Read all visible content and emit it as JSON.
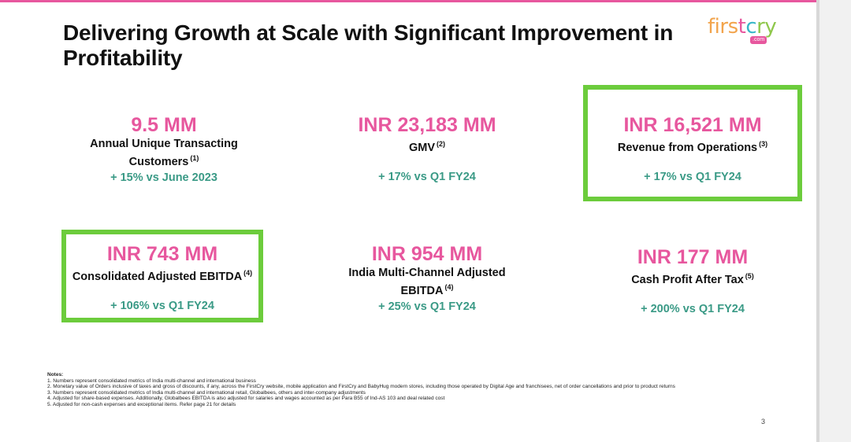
{
  "slide": {
    "title": "Delivering Growth at Scale with Significant Improvement in Profitability",
    "page_number": "3"
  },
  "logo": {
    "parts": [
      "firs",
      "t",
      "c",
      "ry"
    ],
    "badge": ".com"
  },
  "metrics": [
    {
      "value": "9.5 MM",
      "label": "Annual Unique Transacting Customers",
      "note": "(1)",
      "growth": "+ 15% vs June 2023"
    },
    {
      "value": "INR 23,183 MM",
      "label": "GMV",
      "note": "(2)",
      "growth": "+ 17% vs Q1 FY24"
    },
    {
      "value": "INR 16,521 MM",
      "label": "Revenue from Operations",
      "note": "(3)",
      "growth": "+ 17% vs Q1 FY24"
    },
    {
      "value": "INR 743 MM",
      "label": "Consolidated Adjusted EBITDA",
      "note": "(4)",
      "growth": "+ 106% vs Q1 FY24"
    },
    {
      "value": "INR 954 MM",
      "label": "India Multi-Channel Adjusted EBITDA",
      "note": "(4)",
      "growth": "+ 25% vs Q1 FY24"
    },
    {
      "value": "INR 177 MM",
      "label": "Cash Profit After Tax",
      "note": "(5)",
      "growth": "+ 200% vs Q1 FY24"
    }
  ],
  "notes": {
    "heading": "Notes:",
    "items": [
      "1.  Numbers represent consolidated metrics of India multi-channel and international business",
      "2.  Monetary value of Orders inclusive of taxes and gross of discounts, if any, across the FirstCry website, mobile application and FirstCry and BabyHug modern stores, including those operated by Digital Age and franchisees, net of order cancellations and prior to product returns",
      "3.  Numbers represent consolidated metrics of India multi-channel and international retail, Globalbees, others and inter-company adjustments",
      "4.  Adjusted for share-based expenses. Additionally, Globalbees EBITDA is also adjusted for salaries and wages accounted as per Para B55 of Ind-AS 103 and deal related cost",
      "5.  Adjusted for non-cash expenses and exceptional items. Refer page 21 for details"
    ]
  },
  "colors": {
    "accent_pink": "#e7579e",
    "growth_teal": "#3a9a86",
    "highlight_green": "#6ccc3c"
  }
}
